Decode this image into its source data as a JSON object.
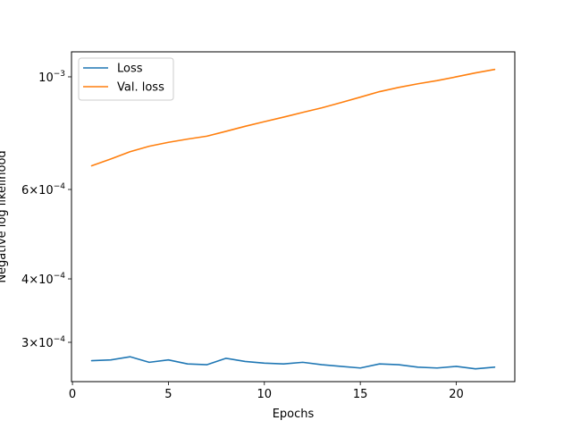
{
  "chart_data": {
    "type": "line",
    "xlabel": "Epochs",
    "ylabel": "Negative log likelihood",
    "yscale": "log",
    "grid": false,
    "legend_position": "top-left",
    "xlim": [
      -0.05,
      23.05
    ],
    "ylim": [
      0.000251,
      0.00112
    ],
    "x_ticks": [
      0,
      5,
      10,
      15,
      20
    ],
    "x_tick_labels": [
      "0",
      "5",
      "10",
      "15",
      "20"
    ],
    "y_ticks": [
      0.0003,
      0.0004,
      0.0006,
      0.001
    ],
    "y_tick_mantissas": [
      "3",
      "4",
      "6",
      "10"
    ],
    "y_tick_exponents": [
      "−4",
      "−4",
      "−4",
      "−3"
    ],
    "x": [
      1,
      2,
      3,
      4,
      5,
      6,
      7,
      8,
      9,
      10,
      11,
      12,
      13,
      14,
      15,
      16,
      17,
      18,
      19,
      20,
      21,
      22
    ],
    "series": [
      {
        "name": "Loss",
        "color": "#1f77b4",
        "values": [
          0.000276,
          0.000277,
          0.000281,
          0.000274,
          0.000277,
          0.000272,
          0.000271,
          0.000279,
          0.000275,
          0.000273,
          0.000272,
          0.000274,
          0.000271,
          0.000269,
          0.000267,
          0.000272,
          0.000271,
          0.000268,
          0.000267,
          0.000269,
          0.000266,
          0.000268
        ]
      },
      {
        "name": "Val. loss",
        "color": "#ff7f0e",
        "values": [
          0.000668,
          0.000689,
          0.000712,
          0.00073,
          0.000743,
          0.000754,
          0.000764,
          0.000781,
          0.000799,
          0.000816,
          0.000833,
          0.000851,
          0.000869,
          0.00089,
          0.000912,
          0.000935,
          0.000953,
          0.000969,
          0.000983,
          0.001,
          0.001018,
          0.001034
        ]
      }
    ]
  }
}
